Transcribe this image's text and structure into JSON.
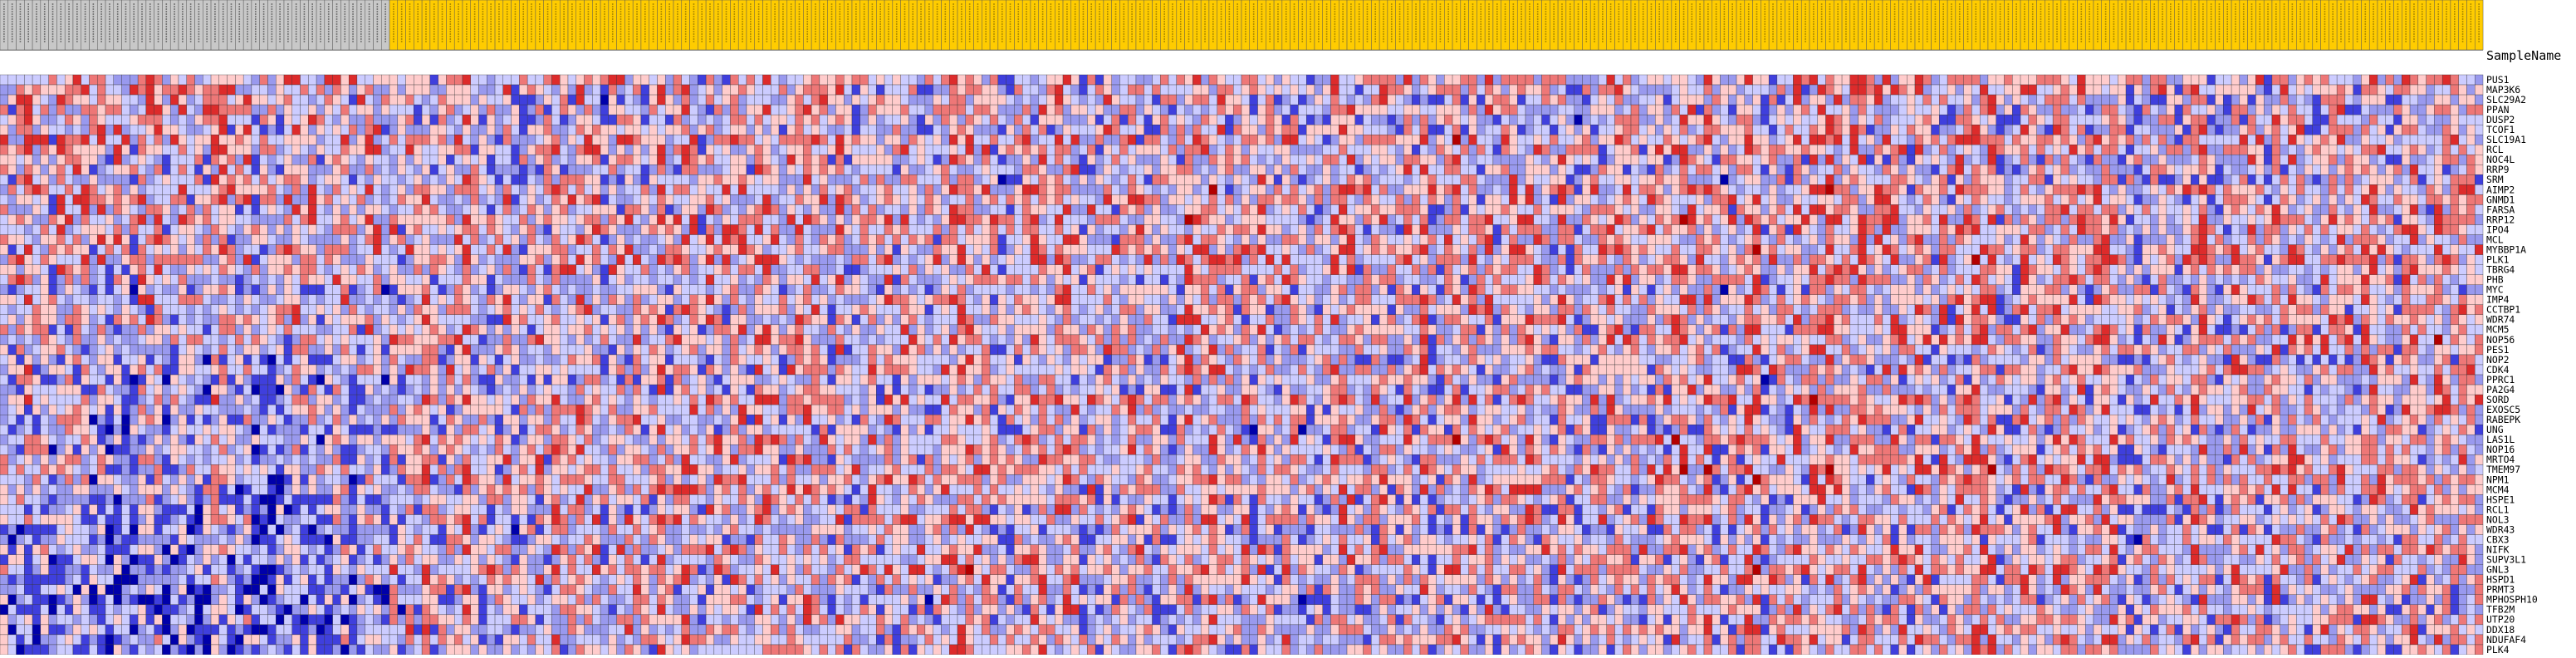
{
  "chart_data": {
    "type": "heatmap",
    "column_header_label": "SampleName",
    "column_groups": [
      {
        "name": "",
        "count": 48,
        "color": "#c8c8c8"
      },
      {
        "name": "",
        "count": 258,
        "color": "#ffcc00"
      }
    ],
    "rows": [
      "PUS1",
      "MAP3K6",
      "SLC29A2",
      "PPAN",
      "DUSP2",
      "TCOF1",
      "SLC19A1",
      "RCL",
      "NOC4L",
      "RRP9",
      "SRM",
      "AIMP2",
      "GNMD1",
      "FARSA",
      "RRP12",
      "IPO4",
      "MCL",
      "MYBBP1A",
      "PLK1",
      "TBRG4",
      "PHB",
      "MYC",
      "IMP4",
      "CCTBP1",
      "WDR74",
      "MCM5",
      "NOP56",
      "PES1",
      "NOP2",
      "CDK4",
      "PPRC1",
      "PA2G4",
      "SORD",
      "EXOSC5",
      "RABEPK",
      "UNG",
      "LAS1L",
      "NOP16",
      "MRTO4",
      "TMEM97",
      "NPM1",
      "MCM4",
      "HSPE1",
      "RCL1",
      "NOL3",
      "WDR43",
      "CBX3",
      "NIFK",
      "SUPV3L1",
      "GNL3",
      "HSPD1",
      "PRMT3",
      "MPHOSPH10",
      "TFB2M",
      "UTP20",
      "DDX18",
      "NDUFAF4",
      "PLK4"
    ],
    "color_scale": [
      "#0000aa",
      "#3f3fdd",
      "#9999ee",
      "#ccccff",
      "#ffcccc",
      "#ee7777",
      "#dd2b2b",
      "#b30000"
    ],
    "value_range": [
      -3,
      3
    ]
  }
}
